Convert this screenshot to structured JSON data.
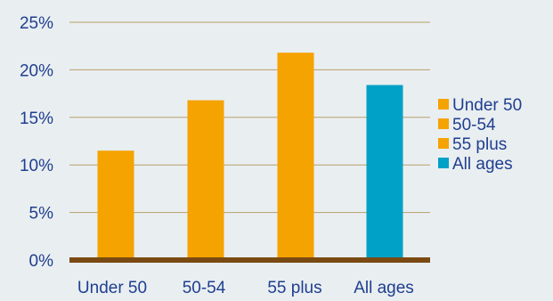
{
  "colors": {
    "background": "#e9eef1",
    "bar_orange": "#f5a300",
    "bar_teal": "#00a1c6",
    "axis_line": "#7a4a12",
    "grid_line": "#b8a06a",
    "text": "#1f3f8f"
  },
  "chart_data": {
    "type": "bar",
    "title": "",
    "xlabel": "",
    "ylabel": "",
    "categories": [
      "Under 50",
      "50-54",
      "55 plus",
      "All ages"
    ],
    "values": [
      0.115,
      0.168,
      0.218,
      0.184
    ],
    "bar_colors": [
      "#f5a300",
      "#f5a300",
      "#f5a300",
      "#00a1c6"
    ],
    "ylim": [
      0,
      0.25
    ],
    "yticks": [
      0,
      0.05,
      0.1,
      0.15,
      0.2,
      0.25
    ],
    "ytick_labels": [
      "0%",
      "5%",
      "10%",
      "15%",
      "20%",
      "25%"
    ],
    "grid": true,
    "legend": {
      "placement": "right",
      "entries": [
        {
          "label": "Under 50",
          "color": "#f5a300"
        },
        {
          "label": "50-54",
          "color": "#f5a300"
        },
        {
          "label": "55 plus",
          "color": "#f5a300"
        },
        {
          "label": "All ages",
          "color": "#00a1c6"
        }
      ]
    }
  }
}
